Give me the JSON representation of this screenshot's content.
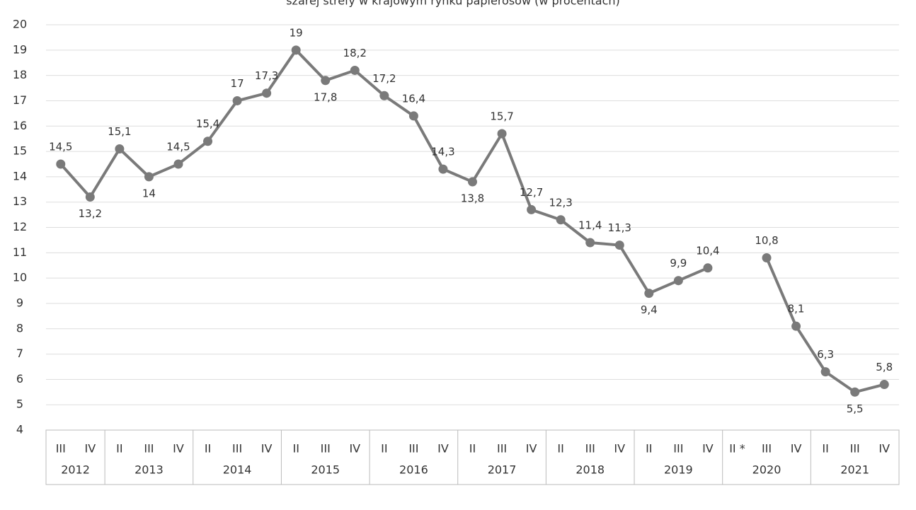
{
  "chart_data": {
    "type": "line",
    "title": "szarej strefy w krajowym rynku papierosów (w procentach)",
    "color": "#7a7a7a",
    "ylim": [
      4,
      20
    ],
    "yticks": [
      4,
      5,
      6,
      7,
      8,
      9,
      10,
      11,
      12,
      13,
      14,
      15,
      16,
      17,
      18,
      19,
      20
    ],
    "grid": true,
    "groups": [
      {
        "name": "2012",
        "categories": [
          "III",
          "IV"
        ],
        "values": [
          14.5,
          13.2
        ],
        "value_labels": [
          "14,5",
          "13,2"
        ]
      },
      {
        "name": "2013",
        "categories": [
          "II",
          "III",
          "IV"
        ],
        "values": [
          15.1,
          14,
          14.5
        ],
        "value_labels": [
          "15,1",
          "14",
          "14,5"
        ]
      },
      {
        "name": "2014",
        "categories": [
          "II",
          "III",
          "IV"
        ],
        "values": [
          15.4,
          17,
          17.3
        ],
        "value_labels": [
          "15,4",
          "17",
          "17,3"
        ]
      },
      {
        "name": "2015",
        "categories": [
          "II",
          "III",
          "IV"
        ],
        "values": [
          19,
          17.8,
          18.2
        ],
        "value_labels": [
          "19",
          "17,8",
          "18,2"
        ]
      },
      {
        "name": "2016",
        "categories": [
          "II",
          "III",
          "IV"
        ],
        "values": [
          17.2,
          16.4,
          14.3
        ],
        "value_labels": [
          "17,2",
          "16,4",
          "14,3"
        ]
      },
      {
        "name": "2017",
        "categories": [
          "II",
          "III",
          "IV"
        ],
        "values": [
          13.8,
          15.7,
          12.7
        ],
        "value_labels": [
          "13,8",
          "15,7",
          "12,7"
        ]
      },
      {
        "name": "2018",
        "categories": [
          "II",
          "III",
          "IV"
        ],
        "values": [
          12.3,
          11.4,
          11.3
        ],
        "value_labels": [
          "12,3",
          "11,4",
          "11,3"
        ]
      },
      {
        "name": "2019",
        "categories": [
          "II",
          "III",
          "IV"
        ],
        "values": [
          9.4,
          9.9,
          10.4
        ],
        "value_labels": [
          "9,4",
          "9,9",
          "10,4"
        ]
      },
      {
        "name": "2020",
        "categories": [
          "II *",
          "III",
          "IV"
        ],
        "values": [
          null,
          10.8,
          8.1
        ],
        "value_labels": [
          null,
          "10,8",
          "8,1"
        ]
      },
      {
        "name": "2021",
        "categories": [
          "II",
          "III",
          "IV"
        ],
        "values": [
          6.3,
          5.5,
          5.8
        ],
        "value_labels": [
          "6,3",
          "5,5",
          "5,8"
        ]
      }
    ]
  }
}
